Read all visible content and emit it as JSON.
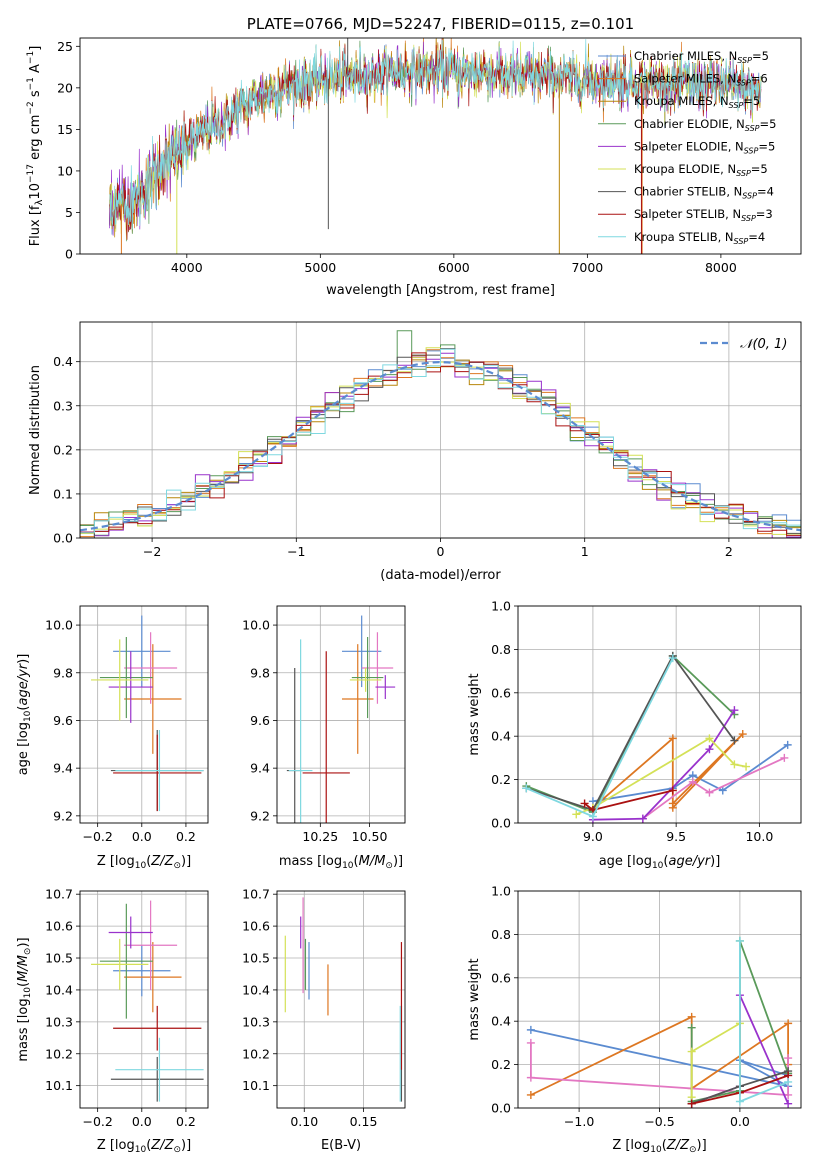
{
  "chart_data": [
    {
      "type": "line",
      "title": "PLATE=0766, MJD=52247, FIBERID=0115, z=0.101",
      "xlabel": "wavelength [Angstrom, rest frame]",
      "ylabel": "Flux [f",
      "xlim": [
        3200,
        8600
      ],
      "ylim": [
        0,
        26
      ],
      "xticks": [
        "4000",
        "5000",
        "6000",
        "7000",
        "8000"
      ],
      "yticks": [
        "0",
        "5",
        "10",
        "15",
        "20",
        "25"
      ],
      "grid": false,
      "legend_position": "top-right",
      "legend": [
        {
          "base": "Chabrier MILES, N",
          "n": "5",
          "color": "#5b8bd0"
        },
        {
          "base": "Salpeter MILES, N",
          "n": "6",
          "color": "#dd7722"
        },
        {
          "base": "Kroupa MILES, N",
          "n": "5",
          "color": "#b8860b"
        },
        {
          "base": "Chabrier ELODIE, N",
          "n": "5",
          "color": "#5a9a5a"
        },
        {
          "base": "Salpeter ELODIE, N",
          "n": "5",
          "color": "#9932cc"
        },
        {
          "base": "Kroupa ELODIE, N",
          "n": "5",
          "color": "#d4e157"
        },
        {
          "base": "Chabrier STELIB, N",
          "n": "4",
          "color": "#555555"
        },
        {
          "base": "Salpeter STELIB, N",
          "n": "3",
          "color": "#aa1111"
        },
        {
          "base": "Kroupa STELIB, N",
          "n": "4",
          "color": "#7fd8e0"
        }
      ],
      "continuum": {
        "x": [
          3400,
          3500,
          3600,
          3700,
          3800,
          3900,
          4000,
          4100,
          4200,
          4300,
          4400,
          4500,
          4700,
          5000,
          5300,
          5600,
          6000,
          6500,
          7000,
          7500,
          8000,
          8300
        ],
        "y": [
          6,
          6,
          6,
          8,
          10.5,
          11.5,
          13,
          14.5,
          15.5,
          16,
          17.5,
          18.5,
          20,
          21,
          21.5,
          22,
          22,
          21.5,
          21,
          20.5,
          20.5,
          19.5
        ]
      }
    },
    {
      "type": "line",
      "xlabel": "(data-model)/error",
      "ylabel": "Normed distribution",
      "xlim": [
        -2.5,
        2.5
      ],
      "ylim": [
        0,
        0.49
      ],
      "xticks": [
        "−2",
        "−1",
        "0",
        "1",
        "2"
      ],
      "yticks": [
        "0.0",
        "0.1",
        "0.2",
        "0.3",
        "0.4"
      ],
      "grid": true,
      "legend": "𝒩(0, 1)",
      "legend_position": "top-right"
    },
    {
      "type": "scatter",
      "xlabel": "Z [log",
      "ylabel": "age  [log",
      "xlim": [
        -0.28,
        0.3
      ],
      "ylim": [
        9.17,
        10.08
      ],
      "xticks": [
        "−0.2",
        "0.0",
        "0.2"
      ],
      "yticks": [
        "9.2",
        "9.4",
        "9.6",
        "9.8",
        "10.0"
      ],
      "grid": true,
      "points": [
        {
          "x": 0.0,
          "y": 9.89,
          "xerr": 0.13,
          "yerr": 0.15,
          "color": "#5b8bd0"
        },
        {
          "x": 0.05,
          "y": 9.69,
          "xerr": 0.13,
          "yerr": 0.23,
          "color": "#dd7722"
        },
        {
          "x": 0.04,
          "y": 9.82,
          "xerr": 0.12,
          "yerr": 0.15,
          "color": "#e377c2"
        },
        {
          "x": -0.07,
          "y": 9.78,
          "xerr": 0.12,
          "yerr": 0.17,
          "color": "#5a9a5a"
        },
        {
          "x": -0.05,
          "y": 9.74,
          "xerr": 0.1,
          "yerr": 0.15,
          "color": "#9932cc"
        },
        {
          "x": -0.1,
          "y": 9.77,
          "xerr": 0.13,
          "yerr": 0.17,
          "color": "#d4e157"
        },
        {
          "x": 0.07,
          "y": 9.39,
          "xerr": 0.21,
          "yerr": 0.17,
          "color": "#555555"
        },
        {
          "x": 0.07,
          "y": 9.38,
          "xerr": 0.2,
          "yerr": 0.16,
          "color": "#aa1111"
        },
        {
          "x": 0.08,
          "y": 9.39,
          "xerr": 0.2,
          "yerr": 0.17,
          "color": "#7fd8e0"
        }
      ]
    },
    {
      "type": "scatter",
      "xlabel": "mass [log",
      "xlim": [
        10.03,
        10.68
      ],
      "ylim": [
        9.17,
        10.08
      ],
      "xticks": [
        "10.25",
        "10.50"
      ],
      "yticks": [
        "9.2",
        "9.4",
        "9.6",
        "9.8",
        "10.0"
      ],
      "grid": true,
      "points": [
        {
          "x": 10.46,
          "y": 9.89,
          "xerr": 0.1,
          "yerr": 0.15,
          "color": "#5b8bd0"
        },
        {
          "x": 10.44,
          "y": 9.69,
          "xerr": 0.08,
          "yerr": 0.23,
          "color": "#dd7722"
        },
        {
          "x": 10.54,
          "y": 9.82,
          "xerr": 0.08,
          "yerr": 0.15,
          "color": "#e377c2"
        },
        {
          "x": 10.49,
          "y": 9.78,
          "xerr": 0.08,
          "yerr": 0.17,
          "color": "#5a9a5a"
        },
        {
          "x": 10.58,
          "y": 9.74,
          "xerr": 0.05,
          "yerr": 0.05,
          "color": "#9932cc"
        },
        {
          "x": 10.48,
          "y": 9.77,
          "xerr": 0.08,
          "yerr": 0.05,
          "color": "#d4e157"
        },
        {
          "x": 10.12,
          "y": 9.39,
          "xerr": 0.04,
          "yerr": 0.43,
          "color": "#555555"
        },
        {
          "x": 10.28,
          "y": 9.38,
          "xerr": 0.12,
          "yerr": 0.51,
          "color": "#aa1111"
        },
        {
          "x": 10.15,
          "y": 9.39,
          "xerr": 0.06,
          "yerr": 0.55,
          "color": "#7fd8e0"
        }
      ]
    },
    {
      "type": "line",
      "xlabel": "age  [log",
      "ylabel": "mass weight",
      "xlim": [
        8.55,
        10.25
      ],
      "ylim": [
        0,
        1.0
      ],
      "xticks": [
        "9.0",
        "9.5",
        "10.0"
      ],
      "yticks": [
        "0.0",
        "0.2",
        "0.4",
        "0.6",
        "0.8",
        "1.0"
      ],
      "grid": true,
      "series": [
        {
          "color": "#5b8bd0",
          "x": [
            9.0,
            9.48,
            9.6,
            9.78,
            10.17
          ],
          "y": [
            0.1,
            0.16,
            0.22,
            0.15,
            0.36
          ]
        },
        {
          "color": "#dd7722",
          "x": [
            9.0,
            9.48,
            9.48,
            9.9,
            9.48
          ],
          "y": [
            0.07,
            0.39,
            0.07,
            0.41,
            0.09
          ]
        },
        {
          "color": "#e377c2",
          "x": [
            9.3,
            9.6,
            9.7,
            10.15
          ],
          "y": [
            0.02,
            0.19,
            0.14,
            0.3
          ]
        },
        {
          "color": "#5a9a5a",
          "x": [
            8.6,
            9.0,
            9.48,
            9.85
          ],
          "y": [
            0.17,
            0.05,
            0.77,
            0.5
          ]
        },
        {
          "color": "#9932cc",
          "x": [
            9.0,
            9.3,
            9.7,
            9.85
          ],
          "y": [
            0.015,
            0.02,
            0.34,
            0.52
          ]
        },
        {
          "color": "#d4e157",
          "x": [
            8.9,
            9.0,
            9.7,
            9.85,
            9.92
          ],
          "y": [
            0.04,
            0.07,
            0.39,
            0.27,
            0.26
          ]
        },
        {
          "color": "#555555",
          "x": [
            8.6,
            9.0,
            9.48,
            9.85
          ],
          "y": [
            0.16,
            0.06,
            0.77,
            0.38
          ]
        },
        {
          "color": "#aa1111",
          "x": [
            8.95,
            9.0,
            9.48
          ],
          "y": [
            0.09,
            0.06,
            0.15
          ]
        },
        {
          "color": "#7fd8e0",
          "x": [
            8.6,
            9.0,
            9.48
          ],
          "y": [
            0.16,
            0.03,
            0.76
          ]
        }
      ]
    },
    {
      "type": "scatter",
      "xlabel": "Z [log",
      "ylabel": "mass [log",
      "xlim": [
        -0.28,
        0.3
      ],
      "ylim": [
        10.03,
        10.71
      ],
      "xticks": [
        "−0.2",
        "0.0",
        "0.2"
      ],
      "yticks": [
        "10.1",
        "10.2",
        "10.3",
        "10.4",
        "10.5",
        "10.6",
        "10.7"
      ],
      "grid": true,
      "points": [
        {
          "x": 0.0,
          "y": 10.46,
          "xerr": 0.13,
          "yerr": 0.08,
          "color": "#5b8bd0"
        },
        {
          "x": 0.05,
          "y": 10.44,
          "xerr": 0.13,
          "yerr": 0.11,
          "color": "#dd7722"
        },
        {
          "x": 0.04,
          "y": 10.54,
          "xerr": 0.12,
          "yerr": 0.14,
          "color": "#e377c2"
        },
        {
          "x": -0.07,
          "y": 10.49,
          "xerr": 0.12,
          "yerr": 0.18,
          "color": "#5a9a5a"
        },
        {
          "x": -0.05,
          "y": 10.58,
          "xerr": 0.1,
          "yerr": 0.05,
          "color": "#9932cc"
        },
        {
          "x": -0.1,
          "y": 10.48,
          "xerr": 0.13,
          "yerr": 0.08,
          "color": "#d4e157"
        },
        {
          "x": 0.07,
          "y": 10.12,
          "xerr": 0.21,
          "yerr": 0.07,
          "color": "#555555"
        },
        {
          "x": 0.07,
          "y": 10.28,
          "xerr": 0.2,
          "yerr": 0.07,
          "color": "#aa1111"
        },
        {
          "x": 0.08,
          "y": 10.15,
          "xerr": 0.2,
          "yerr": 0.1,
          "color": "#7fd8e0"
        }
      ]
    },
    {
      "type": "scatter",
      "xlabel": "E(B-V)",
      "xlim": [
        0.077,
        0.185
      ],
      "ylim": [
        10.03,
        10.71
      ],
      "xticks": [
        "0.10",
        "0.15"
      ],
      "yticks": [
        "10.1",
        "10.2",
        "10.3",
        "10.4",
        "10.5",
        "10.6",
        "10.7"
      ],
      "grid": true,
      "points": [
        {
          "x": 0.104,
          "y": 10.46,
          "yerr": 0.09,
          "color": "#5b8bd0"
        },
        {
          "x": 0.12,
          "y": 10.4,
          "yerr": 0.08,
          "color": "#dd7722"
        },
        {
          "x": 0.099,
          "y": 10.54,
          "yerr": 0.15,
          "color": "#e377c2"
        },
        {
          "x": 0.101,
          "y": 10.48,
          "yerr": 0.08,
          "color": "#5a9a5a"
        },
        {
          "x": 0.097,
          "y": 10.58,
          "yerr": 0.05,
          "color": "#9932cc"
        },
        {
          "x": 0.084,
          "y": 10.45,
          "yerr": 0.12,
          "color": "#d4e157"
        },
        {
          "x": 0.182,
          "y": 10.2,
          "yerr": 0.15,
          "color": "#555555"
        },
        {
          "x": 0.182,
          "y": 10.35,
          "yerr": 0.2,
          "color": "#aa1111"
        },
        {
          "x": 0.181,
          "y": 10.2,
          "yerr": 0.15,
          "color": "#7fd8e0"
        }
      ]
    },
    {
      "type": "line",
      "xlabel": "Z [log",
      "ylabel": "mass weight",
      "xlim": [
        -1.38,
        0.38
      ],
      "ylim": [
        0,
        1.0
      ],
      "xticks": [
        "−1.0",
        "−0.5",
        "0.0"
      ],
      "yticks": [
        "0.0",
        "0.2",
        "0.4",
        "0.6",
        "0.8",
        "1.0"
      ],
      "grid": true,
      "series": [
        {
          "color": "#5b8bd0",
          "x": [
            -1.3,
            0.3,
            0.0,
            0.3
          ],
          "y": [
            0.36,
            0.1,
            0.22,
            0.15
          ]
        },
        {
          "color": "#dd7722",
          "x": [
            -1.3,
            -0.3,
            -0.3,
            0.3,
            0.3
          ],
          "y": [
            0.06,
            0.42,
            0.09,
            0.39,
            0.2
          ]
        },
        {
          "color": "#e377c2",
          "x": [
            -1.3,
            -1.3,
            0.3,
            0.3
          ],
          "y": [
            0.3,
            0.14,
            0.06,
            0.23
          ]
        },
        {
          "color": "#5a9a5a",
          "x": [
            -0.3,
            -0.3,
            0.0,
            0.0,
            0.3
          ],
          "y": [
            0.37,
            0.03,
            0.08,
            0.77,
            0.16
          ]
        },
        {
          "color": "#9932cc",
          "x": [
            -0.3,
            0.0,
            0.0,
            0.3
          ],
          "y": [
            0.02,
            0.1,
            0.52,
            0.02
          ]
        },
        {
          "color": "#d4e157",
          "x": [
            -0.3,
            -0.3,
            0.0,
            0.0
          ],
          "y": [
            0.05,
            0.26,
            0.39,
            0.07
          ]
        },
        {
          "color": "#555555",
          "x": [
            -0.3,
            0.0,
            0.3
          ],
          "y": [
            0.02,
            0.1,
            0.17
          ]
        },
        {
          "color": "#aa1111",
          "x": [
            -0.3,
            0.0,
            0.3
          ],
          "y": [
            0.02,
            0.07,
            0.15
          ]
        },
        {
          "color": "#7fd8e0",
          "x": [
            0.0,
            0.0,
            0.3
          ],
          "y": [
            0.77,
            0.03,
            0.12
          ]
        }
      ]
    }
  ]
}
